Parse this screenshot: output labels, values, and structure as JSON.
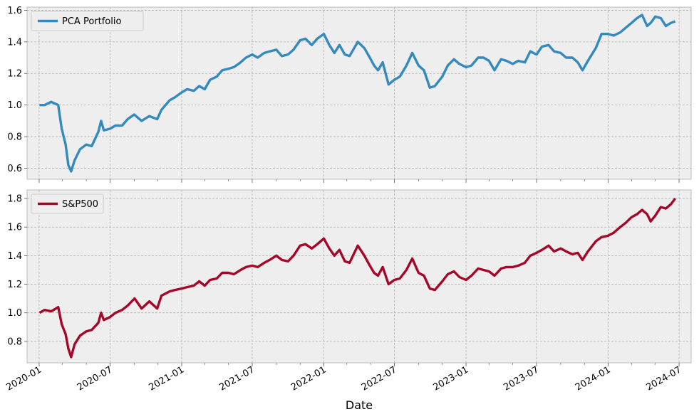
{
  "chart_data": [
    {
      "type": "line",
      "panel": "top",
      "title": "",
      "xlabel": "",
      "ylabel": "",
      "ylim": [
        0.53,
        1.62
      ],
      "yticks": [
        0.6,
        0.8,
        1.0,
        1.2,
        1.4,
        1.6
      ],
      "xlim": [
        "2019-12-01",
        "2024-08-01"
      ],
      "grid": true,
      "legend_position": "upper-left",
      "series": [
        {
          "name": "PCA Portfolio",
          "color": "#348ABD",
          "points": [
            [
              "2020-01-02",
              1.0
            ],
            [
              "2020-01-15",
              1.0
            ],
            [
              "2020-02-01",
              1.02
            ],
            [
              "2020-02-19",
              1.0
            ],
            [
              "2020-02-28",
              0.85
            ],
            [
              "2020-03-09",
              0.75
            ],
            [
              "2020-03-16",
              0.62
            ],
            [
              "2020-03-23",
              0.58
            ],
            [
              "2020-04-01",
              0.65
            ],
            [
              "2020-04-15",
              0.72
            ],
            [
              "2020-05-01",
              0.75
            ],
            [
              "2020-05-15",
              0.74
            ],
            [
              "2020-06-01",
              0.83
            ],
            [
              "2020-06-08",
              0.9
            ],
            [
              "2020-06-15",
              0.84
            ],
            [
              "2020-07-01",
              0.85
            ],
            [
              "2020-07-15",
              0.87
            ],
            [
              "2020-08-01",
              0.87
            ],
            [
              "2020-08-15",
              0.91
            ],
            [
              "2020-09-01",
              0.94
            ],
            [
              "2020-09-20",
              0.9
            ],
            [
              "2020-10-10",
              0.93
            ],
            [
              "2020-10-30",
              0.91
            ],
            [
              "2020-11-10",
              0.97
            ],
            [
              "2020-12-01",
              1.03
            ],
            [
              "2020-12-15",
              1.05
            ],
            [
              "2021-01-01",
              1.08
            ],
            [
              "2021-01-15",
              1.1
            ],
            [
              "2021-02-01",
              1.09
            ],
            [
              "2021-02-15",
              1.12
            ],
            [
              "2021-03-01",
              1.1
            ],
            [
              "2021-03-15",
              1.16
            ],
            [
              "2021-04-01",
              1.18
            ],
            [
              "2021-04-15",
              1.22
            ],
            [
              "2021-05-01",
              1.23
            ],
            [
              "2021-05-15",
              1.24
            ],
            [
              "2021-06-01",
              1.27
            ],
            [
              "2021-06-15",
              1.3
            ],
            [
              "2021-07-01",
              1.32
            ],
            [
              "2021-07-15",
              1.3
            ],
            [
              "2021-08-01",
              1.33
            ],
            [
              "2021-08-15",
              1.34
            ],
            [
              "2021-09-01",
              1.35
            ],
            [
              "2021-09-15",
              1.31
            ],
            [
              "2021-10-01",
              1.32
            ],
            [
              "2021-10-15",
              1.35
            ],
            [
              "2021-11-01",
              1.41
            ],
            [
              "2021-11-15",
              1.42
            ],
            [
              "2021-12-01",
              1.38
            ],
            [
              "2021-12-15",
              1.42
            ],
            [
              "2022-01-01",
              1.45
            ],
            [
              "2022-01-15",
              1.38
            ],
            [
              "2022-01-28",
              1.33
            ],
            [
              "2022-02-10",
              1.38
            ],
            [
              "2022-02-24",
              1.32
            ],
            [
              "2022-03-08",
              1.31
            ],
            [
              "2022-03-29",
              1.4
            ],
            [
              "2022-04-15",
              1.36
            ],
            [
              "2022-04-29",
              1.3
            ],
            [
              "2022-05-10",
              1.25
            ],
            [
              "2022-05-20",
              1.22
            ],
            [
              "2022-06-01",
              1.27
            ],
            [
              "2022-06-16",
              1.13
            ],
            [
              "2022-07-01",
              1.16
            ],
            [
              "2022-07-15",
              1.18
            ],
            [
              "2022-08-01",
              1.25
            ],
            [
              "2022-08-16",
              1.33
            ],
            [
              "2022-09-01",
              1.25
            ],
            [
              "2022-09-15",
              1.22
            ],
            [
              "2022-09-30",
              1.11
            ],
            [
              "2022-10-13",
              1.12
            ],
            [
              "2022-11-01",
              1.18
            ],
            [
              "2022-11-15",
              1.25
            ],
            [
              "2022-12-01",
              1.29
            ],
            [
              "2022-12-15",
              1.26
            ],
            [
              "2023-01-01",
              1.24
            ],
            [
              "2023-01-15",
              1.25
            ],
            [
              "2023-02-01",
              1.3
            ],
            [
              "2023-02-15",
              1.3
            ],
            [
              "2023-03-01",
              1.28
            ],
            [
              "2023-03-15",
              1.22
            ],
            [
              "2023-04-01",
              1.29
            ],
            [
              "2023-04-15",
              1.28
            ],
            [
              "2023-05-01",
              1.26
            ],
            [
              "2023-05-15",
              1.28
            ],
            [
              "2023-06-01",
              1.27
            ],
            [
              "2023-06-15",
              1.34
            ],
            [
              "2023-07-01",
              1.32
            ],
            [
              "2023-07-15",
              1.37
            ],
            [
              "2023-08-01",
              1.38
            ],
            [
              "2023-08-15",
              1.34
            ],
            [
              "2023-09-01",
              1.33
            ],
            [
              "2023-09-15",
              1.3
            ],
            [
              "2023-10-01",
              1.3
            ],
            [
              "2023-10-15",
              1.27
            ],
            [
              "2023-10-27",
              1.22
            ],
            [
              "2023-11-10",
              1.28
            ],
            [
              "2023-11-30",
              1.36
            ],
            [
              "2023-12-15",
              1.45
            ],
            [
              "2024-01-01",
              1.45
            ],
            [
              "2024-01-15",
              1.44
            ],
            [
              "2024-02-01",
              1.46
            ],
            [
              "2024-02-15",
              1.49
            ],
            [
              "2024-03-01",
              1.52
            ],
            [
              "2024-03-15",
              1.55
            ],
            [
              "2024-03-28",
              1.57
            ],
            [
              "2024-04-10",
              1.5
            ],
            [
              "2024-04-19",
              1.52
            ],
            [
              "2024-05-01",
              1.56
            ],
            [
              "2024-05-15",
              1.55
            ],
            [
              "2024-05-28",
              1.5
            ],
            [
              "2024-06-10",
              1.52
            ],
            [
              "2024-06-21",
              1.53
            ]
          ]
        }
      ]
    },
    {
      "type": "line",
      "panel": "bottom",
      "title": "",
      "xlabel": "Date",
      "ylabel": "",
      "ylim": [
        0.65,
        1.86
      ],
      "yticks": [
        0.8,
        1.0,
        1.2,
        1.4,
        1.6,
        1.8
      ],
      "xlim": [
        "2019-12-01",
        "2024-08-01"
      ],
      "xticks": [
        "2020-01",
        "2020-07",
        "2021-01",
        "2021-07",
        "2022-01",
        "2022-07",
        "2023-01",
        "2023-07",
        "2024-01",
        "2024-07"
      ],
      "grid": true,
      "legend_position": "upper-left",
      "series": [
        {
          "name": "S&P500",
          "color": "#A60628",
          "points": [
            [
              "2020-01-02",
              1.0
            ],
            [
              "2020-01-15",
              1.02
            ],
            [
              "2020-02-01",
              1.01
            ],
            [
              "2020-02-19",
              1.04
            ],
            [
              "2020-02-28",
              0.92
            ],
            [
              "2020-03-09",
              0.85
            ],
            [
              "2020-03-16",
              0.75
            ],
            [
              "2020-03-23",
              0.69
            ],
            [
              "2020-04-01",
              0.78
            ],
            [
              "2020-04-15",
              0.84
            ],
            [
              "2020-05-01",
              0.87
            ],
            [
              "2020-05-15",
              0.88
            ],
            [
              "2020-06-01",
              0.93
            ],
            [
              "2020-06-08",
              1.0
            ],
            [
              "2020-06-15",
              0.95
            ],
            [
              "2020-07-01",
              0.97
            ],
            [
              "2020-07-15",
              1.0
            ],
            [
              "2020-08-01",
              1.02
            ],
            [
              "2020-08-15",
              1.05
            ],
            [
              "2020-09-02",
              1.1
            ],
            [
              "2020-09-20",
              1.03
            ],
            [
              "2020-10-10",
              1.08
            ],
            [
              "2020-10-30",
              1.03
            ],
            [
              "2020-11-10",
              1.12
            ],
            [
              "2020-12-01",
              1.15
            ],
            [
              "2020-12-15",
              1.16
            ],
            [
              "2021-01-01",
              1.17
            ],
            [
              "2021-01-15",
              1.18
            ],
            [
              "2021-02-01",
              1.19
            ],
            [
              "2021-02-15",
              1.22
            ],
            [
              "2021-03-01",
              1.19
            ],
            [
              "2021-03-15",
              1.23
            ],
            [
              "2021-04-01",
              1.24
            ],
            [
              "2021-04-15",
              1.28
            ],
            [
              "2021-05-01",
              1.28
            ],
            [
              "2021-05-15",
              1.27
            ],
            [
              "2021-06-01",
              1.3
            ],
            [
              "2021-06-15",
              1.32
            ],
            [
              "2021-07-01",
              1.33
            ],
            [
              "2021-07-15",
              1.32
            ],
            [
              "2021-08-01",
              1.35
            ],
            [
              "2021-08-15",
              1.37
            ],
            [
              "2021-09-01",
              1.4
            ],
            [
              "2021-09-15",
              1.37
            ],
            [
              "2021-10-01",
              1.36
            ],
            [
              "2021-10-15",
              1.4
            ],
            [
              "2021-11-01",
              1.47
            ],
            [
              "2021-11-15",
              1.48
            ],
            [
              "2021-12-01",
              1.45
            ],
            [
              "2021-12-15",
              1.48
            ],
            [
              "2022-01-01",
              1.52
            ],
            [
              "2022-01-15",
              1.45
            ],
            [
              "2022-01-28",
              1.4
            ],
            [
              "2022-02-10",
              1.44
            ],
            [
              "2022-02-24",
              1.36
            ],
            [
              "2022-03-08",
              1.35
            ],
            [
              "2022-03-29",
              1.47
            ],
            [
              "2022-04-15",
              1.4
            ],
            [
              "2022-04-29",
              1.33
            ],
            [
              "2022-05-10",
              1.28
            ],
            [
              "2022-05-20",
              1.26
            ],
            [
              "2022-06-01",
              1.32
            ],
            [
              "2022-06-16",
              1.2
            ],
            [
              "2022-07-01",
              1.23
            ],
            [
              "2022-07-15",
              1.24
            ],
            [
              "2022-08-01",
              1.3
            ],
            [
              "2022-08-16",
              1.38
            ],
            [
              "2022-09-01",
              1.28
            ],
            [
              "2022-09-15",
              1.26
            ],
            [
              "2022-09-30",
              1.17
            ],
            [
              "2022-10-13",
              1.16
            ],
            [
              "2022-11-01",
              1.22
            ],
            [
              "2022-11-15",
              1.27
            ],
            [
              "2022-12-01",
              1.29
            ],
            [
              "2022-12-15",
              1.25
            ],
            [
              "2023-01-01",
              1.23
            ],
            [
              "2023-01-15",
              1.26
            ],
            [
              "2023-02-01",
              1.31
            ],
            [
              "2023-02-15",
              1.3
            ],
            [
              "2023-03-01",
              1.29
            ],
            [
              "2023-03-15",
              1.26
            ],
            [
              "2023-04-01",
              1.31
            ],
            [
              "2023-04-15",
              1.32
            ],
            [
              "2023-05-01",
              1.32
            ],
            [
              "2023-05-15",
              1.33
            ],
            [
              "2023-06-01",
              1.35
            ],
            [
              "2023-06-15",
              1.4
            ],
            [
              "2023-07-01",
              1.42
            ],
            [
              "2023-07-15",
              1.44
            ],
            [
              "2023-08-01",
              1.47
            ],
            [
              "2023-08-15",
              1.43
            ],
            [
              "2023-09-01",
              1.45
            ],
            [
              "2023-09-15",
              1.43
            ],
            [
              "2023-10-01",
              1.41
            ],
            [
              "2023-10-15",
              1.42
            ],
            [
              "2023-10-27",
              1.37
            ],
            [
              "2023-11-10",
              1.43
            ],
            [
              "2023-11-30",
              1.5
            ],
            [
              "2023-12-15",
              1.53
            ],
            [
              "2024-01-01",
              1.54
            ],
            [
              "2024-01-15",
              1.56
            ],
            [
              "2024-02-01",
              1.6
            ],
            [
              "2024-02-15",
              1.63
            ],
            [
              "2024-03-01",
              1.67
            ],
            [
              "2024-03-15",
              1.69
            ],
            [
              "2024-03-28",
              1.72
            ],
            [
              "2024-04-10",
              1.69
            ],
            [
              "2024-04-19",
              1.64
            ],
            [
              "2024-05-01",
              1.68
            ],
            [
              "2024-05-15",
              1.74
            ],
            [
              "2024-05-28",
              1.73
            ],
            [
              "2024-06-10",
              1.76
            ],
            [
              "2024-06-21",
              1.8
            ]
          ]
        }
      ]
    }
  ]
}
